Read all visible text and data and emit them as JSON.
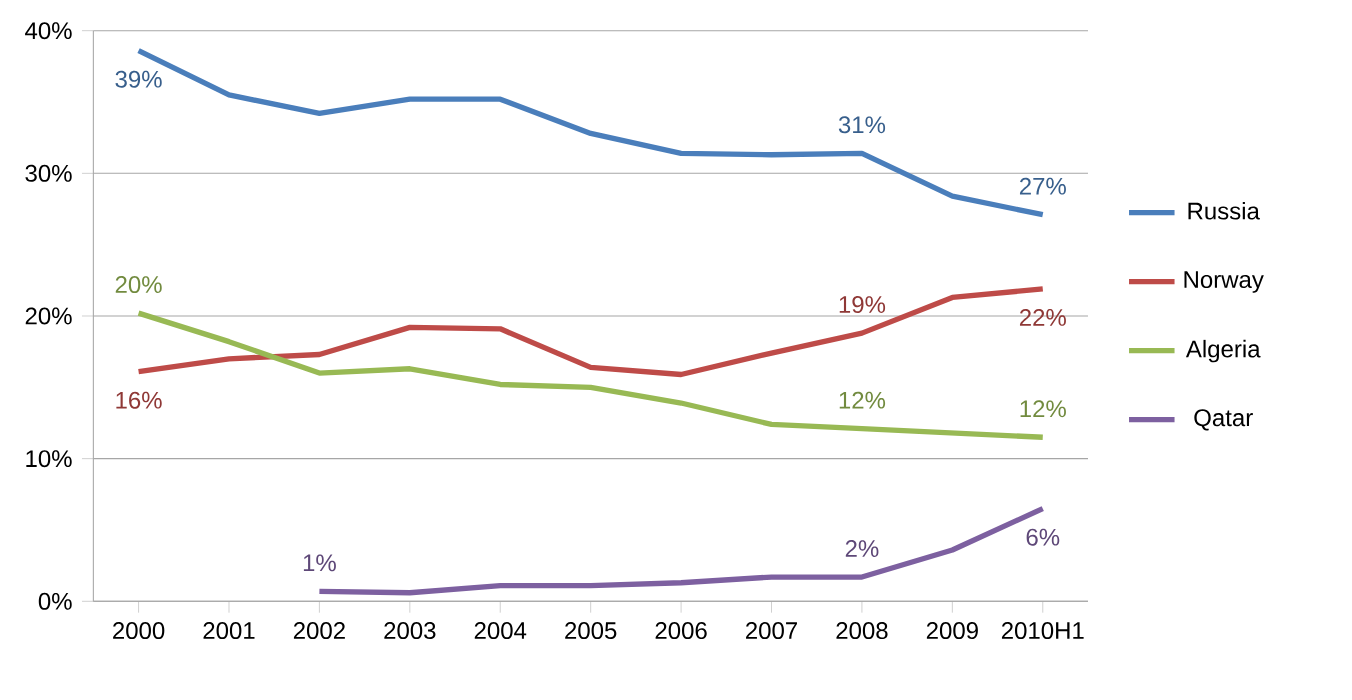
{
  "chart_data": {
    "type": "line",
    "categories": [
      "2000",
      "2001",
      "2002",
      "2003",
      "2004",
      "2005",
      "2006",
      "2007",
      "2008",
      "2009",
      "2010H1"
    ],
    "series": [
      {
        "name": "Russia",
        "color": "#4a7ebb",
        "values": [
          38.6,
          35.5,
          34.2,
          35.2,
          35.2,
          32.8,
          31.4,
          31.3,
          31.4,
          28.4,
          27.1
        ],
        "value_labels": [
          "39%",
          null,
          null,
          null,
          null,
          null,
          null,
          null,
          "31%",
          null,
          "27%"
        ]
      },
      {
        "name": "Norway",
        "color": "#be4b48",
        "values": [
          16.1,
          17.0,
          17.3,
          19.2,
          19.1,
          16.4,
          15.9,
          17.4,
          18.8,
          21.3,
          21.9
        ],
        "value_labels": [
          "16%",
          null,
          null,
          null,
          null,
          null,
          null,
          null,
          "19%",
          null,
          "22%"
        ]
      },
      {
        "name": "Algeria",
        "color": "#98b954",
        "values": [
          20.2,
          18.2,
          16.0,
          16.3,
          15.2,
          15.0,
          13.9,
          12.4,
          12.1,
          11.8,
          11.5
        ],
        "value_labels": [
          "20%",
          null,
          null,
          null,
          null,
          null,
          null,
          null,
          "12%",
          null,
          "12%"
        ]
      },
      {
        "name": "Qatar",
        "color": "#7d60a0",
        "values": [
          null,
          null,
          0.7,
          0.6,
          1.1,
          1.1,
          1.3,
          1.7,
          1.7,
          3.6,
          6.5
        ],
        "value_labels": [
          null,
          null,
          "1%",
          null,
          null,
          null,
          null,
          null,
          "2%",
          null,
          "6%"
        ]
      }
    ],
    "ylim": [
      0,
      40
    ],
    "yticks": [
      {
        "value": 0,
        "label": "0%"
      },
      {
        "value": 10,
        "label": "10%"
      },
      {
        "value": 20,
        "label": "20%"
      },
      {
        "value": 30,
        "label": "30%"
      },
      {
        "value": 40,
        "label": "40%"
      }
    ],
    "grid": "y",
    "legend": "right",
    "marker": "none",
    "line_style": "solid"
  }
}
